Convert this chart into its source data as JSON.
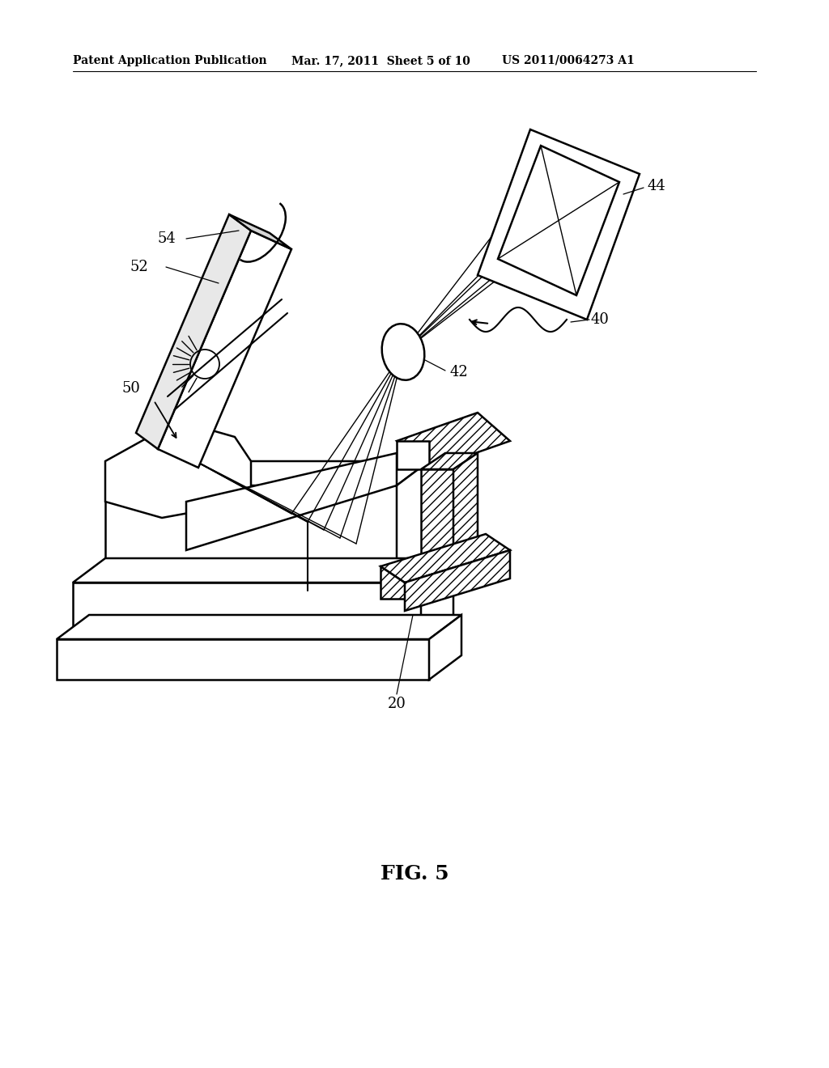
{
  "title_left": "Patent Application Publication",
  "title_mid": "Mar. 17, 2011  Sheet 5 of 10",
  "title_right": "US 2011/0064273 A1",
  "fig_label": "FIG. 5",
  "background_color": "#ffffff",
  "line_color": "#000000",
  "label_fontsize": 13,
  "header_fontsize": 10,
  "fig_label_fontsize": 18
}
